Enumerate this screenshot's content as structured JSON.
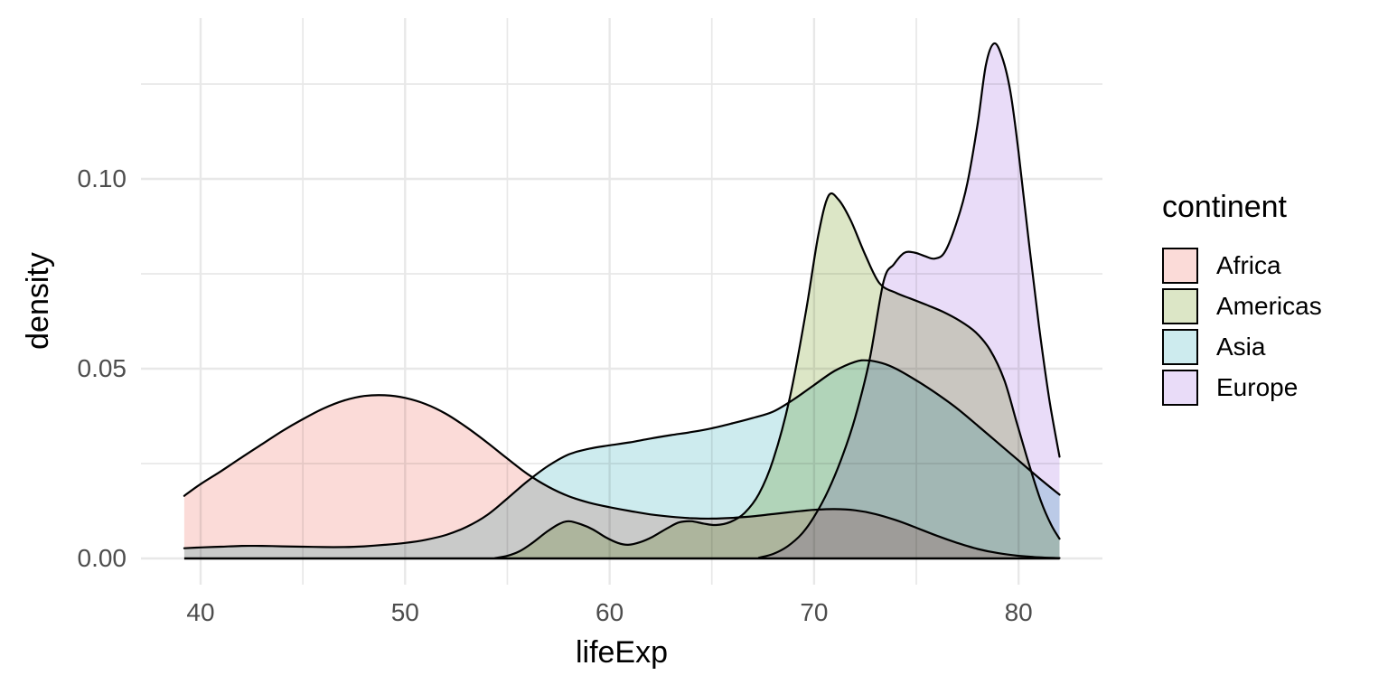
{
  "chart_data": {
    "type": "area",
    "subtype": "kernel-density",
    "title": "",
    "xlabel": "lifeExp",
    "ylabel": "density",
    "xlim": [
      39.2,
      82
    ],
    "ylim": [
      0,
      0.1407
    ],
    "grid": true,
    "x_axis": {
      "tick_values": [
        40,
        50,
        60,
        70,
        80
      ],
      "tick_labels": [
        "40",
        "50",
        "60",
        "70",
        "80"
      ],
      "minor_values": [
        45,
        55,
        65,
        75
      ]
    },
    "y_axis": {
      "tick_values": [
        0,
        0.05,
        0.1
      ],
      "tick_labels": [
        "0.00",
        "0.05",
        "0.10"
      ],
      "minor_values": [
        0.025,
        0.075,
        0.125
      ]
    },
    "legend_position": "right",
    "series": [
      {
        "name": "Africa",
        "fill_color": "#fbdbd8",
        "outline_color": "#000000",
        "points": [
          [
            39.2,
            0.0165
          ],
          [
            40,
            0.0196
          ],
          [
            41,
            0.023
          ],
          [
            42,
            0.0266
          ],
          [
            43,
            0.0301
          ],
          [
            44,
            0.0336
          ],
          [
            45,
            0.0367
          ],
          [
            46,
            0.0395
          ],
          [
            47,
            0.0416
          ],
          [
            48,
            0.0428
          ],
          [
            49,
            0.043
          ],
          [
            50,
            0.0423
          ],
          [
            51,
            0.0407
          ],
          [
            52,
            0.0381
          ],
          [
            53,
            0.0346
          ],
          [
            54,
            0.0306
          ],
          [
            55,
            0.0263
          ],
          [
            56,
            0.0222
          ],
          [
            57,
            0.0189
          ],
          [
            58,
            0.0164
          ],
          [
            59,
            0.0147
          ],
          [
            60,
            0.0135
          ],
          [
            61,
            0.0125
          ],
          [
            62,
            0.0116
          ],
          [
            63,
            0.011
          ],
          [
            64,
            0.0106
          ],
          [
            65,
            0.0105
          ],
          [
            66,
            0.0107
          ],
          [
            67,
            0.0111
          ],
          [
            68,
            0.0117
          ],
          [
            69,
            0.0123
          ],
          [
            70,
            0.0128
          ],
          [
            71,
            0.013
          ],
          [
            72,
            0.0127
          ],
          [
            73,
            0.0117
          ],
          [
            74,
            0.0101
          ],
          [
            75,
            0.0081
          ],
          [
            76,
            0.006
          ],
          [
            77,
            0.0041
          ],
          [
            78,
            0.0025
          ],
          [
            79,
            0.0014
          ],
          [
            80,
            0.0007
          ],
          [
            81,
            0.0003
          ],
          [
            82,
            0.0001
          ]
        ]
      },
      {
        "name": "Americas",
        "fill_color": "#dce6c6",
        "outline_color": "#000000",
        "points": [
          [
            54.4,
            0.0001
          ],
          [
            55,
            0.0007
          ],
          [
            55.6,
            0.0019
          ],
          [
            56.2,
            0.004
          ],
          [
            56.9,
            0.0069
          ],
          [
            57.5,
            0.009
          ],
          [
            58,
            0.0098
          ],
          [
            58.6,
            0.009
          ],
          [
            59.2,
            0.0076
          ],
          [
            59.8,
            0.0056
          ],
          [
            60.4,
            0.0041
          ],
          [
            60.9,
            0.0036
          ],
          [
            61.5,
            0.0043
          ],
          [
            62.1,
            0.0057
          ],
          [
            62.8,
            0.0079
          ],
          [
            63.4,
            0.0095
          ],
          [
            64,
            0.0098
          ],
          [
            64.6,
            0.0092
          ],
          [
            65.2,
            0.0088
          ],
          [
            65.9,
            0.0096
          ],
          [
            66.6,
            0.012
          ],
          [
            67.3,
            0.017
          ],
          [
            68,
            0.026
          ],
          [
            68.8,
            0.042
          ],
          [
            69.6,
            0.065
          ],
          [
            70.2,
            0.085
          ],
          [
            70.7,
            0.0955
          ],
          [
            71.2,
            0.0945
          ],
          [
            71.8,
            0.089
          ],
          [
            72.5,
            0.08
          ],
          [
            73.2,
            0.0725
          ],
          [
            74,
            0.07
          ],
          [
            74.7,
            0.0685
          ],
          [
            75.5,
            0.0668
          ],
          [
            76.3,
            0.065
          ],
          [
            77.1,
            0.0627
          ],
          [
            77.9,
            0.0596
          ],
          [
            78.6,
            0.055
          ],
          [
            79.3,
            0.047
          ],
          [
            79.9,
            0.036
          ],
          [
            80.5,
            0.025
          ],
          [
            81.1,
            0.015
          ],
          [
            81.6,
            0.0088
          ],
          [
            82,
            0.0052
          ]
        ]
      },
      {
        "name": "Asia",
        "fill_color": "#cdebee",
        "outline_color": "#000000",
        "points": [
          [
            39.2,
            0.0027
          ],
          [
            40,
            0.0029
          ],
          [
            41,
            0.0031
          ],
          [
            42,
            0.0033
          ],
          [
            43,
            0.0033
          ],
          [
            44,
            0.0032
          ],
          [
            45,
            0.0031
          ],
          [
            46,
            0.003
          ],
          [
            47,
            0.003
          ],
          [
            48,
            0.0032
          ],
          [
            49,
            0.0036
          ],
          [
            50,
            0.0041
          ],
          [
            51,
            0.0049
          ],
          [
            52,
            0.0062
          ],
          [
            53,
            0.0083
          ],
          [
            54,
            0.0114
          ],
          [
            55,
            0.0158
          ],
          [
            56,
            0.0204
          ],
          [
            57,
            0.0244
          ],
          [
            58,
            0.0274
          ],
          [
            59,
            0.0289
          ],
          [
            60,
            0.0298
          ],
          [
            61,
            0.0306
          ],
          [
            62,
            0.0316
          ],
          [
            63,
            0.0325
          ],
          [
            64,
            0.0333
          ],
          [
            65,
            0.0343
          ],
          [
            66,
            0.0356
          ],
          [
            67,
            0.037
          ],
          [
            68,
            0.0387
          ],
          [
            69,
            0.0419
          ],
          [
            70,
            0.0457
          ],
          [
            71,
            0.0494
          ],
          [
            72,
            0.0518
          ],
          [
            72.6,
            0.0522
          ],
          [
            73.3,
            0.0515
          ],
          [
            74,
            0.05
          ],
          [
            75,
            0.0469
          ],
          [
            76,
            0.0434
          ],
          [
            77,
            0.0395
          ],
          [
            78,
            0.035
          ],
          [
            79,
            0.0304
          ],
          [
            80,
            0.0258
          ],
          [
            81,
            0.0212
          ],
          [
            82,
            0.0168
          ]
        ]
      },
      {
        "name": "Europe",
        "fill_color": "#e9dcf8",
        "outline_color": "#000000",
        "points": [
          [
            67.3,
            0.0002
          ],
          [
            68,
            0.0012
          ],
          [
            68.7,
            0.0032
          ],
          [
            69.4,
            0.0065
          ],
          [
            70,
            0.011
          ],
          [
            70.7,
            0.018
          ],
          [
            71.4,
            0.0272
          ],
          [
            72,
            0.037
          ],
          [
            72.7,
            0.052
          ],
          [
            73.4,
            0.073
          ],
          [
            73.9,
            0.0775
          ],
          [
            74.4,
            0.0805
          ],
          [
            74.9,
            0.0806
          ],
          [
            75.4,
            0.0797
          ],
          [
            75.9,
            0.079
          ],
          [
            76.4,
            0.0808
          ],
          [
            77,
            0.089
          ],
          [
            77.5,
            0.099
          ],
          [
            78,
            0.1145
          ],
          [
            78.4,
            0.13
          ],
          [
            78.8,
            0.1357
          ],
          [
            79.2,
            0.132
          ],
          [
            79.6,
            0.123
          ],
          [
            80,
            0.107
          ],
          [
            80.5,
            0.0835
          ],
          [
            81,
            0.0612
          ],
          [
            81.5,
            0.042
          ],
          [
            82,
            0.0268
          ]
        ]
      }
    ]
  },
  "legend": {
    "title": "continent",
    "items": [
      {
        "label": "Africa",
        "color": "#fbdbd8"
      },
      {
        "label": "Americas",
        "color": "#dce6c6"
      },
      {
        "label": "Asia",
        "color": "#cdebee"
      },
      {
        "label": "Europe",
        "color": "#e9dcf8"
      }
    ]
  },
  "style": {
    "grid_color": "#e8e8e8",
    "tick_label_color": "#4d4d4d",
    "baseline_color": "#000000"
  }
}
